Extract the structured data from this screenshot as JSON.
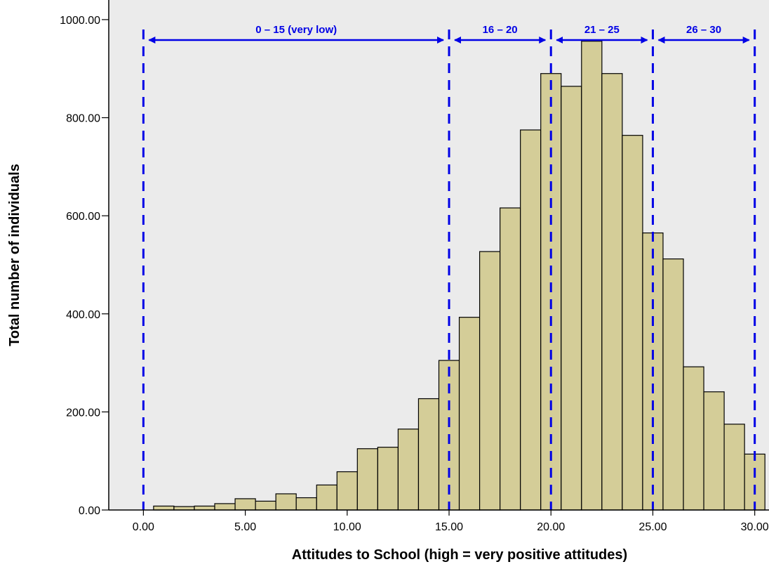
{
  "chart_data": {
    "type": "bar",
    "xlabel": "Attitudes to School (high = very positive attitudes)",
    "ylabel": "Total number of individuals",
    "x_range": [
      -1.7,
      30.7
    ],
    "ylim": [
      0,
      1040
    ],
    "x_ticks": [
      0,
      5,
      10,
      15,
      20,
      25,
      30
    ],
    "x_tick_labels": [
      "0.00",
      "5.00",
      "10.00",
      "15.00",
      "20.00",
      "25.00",
      "30.00"
    ],
    "y_ticks": [
      0,
      200,
      400,
      600,
      800,
      1000
    ],
    "y_tick_labels": [
      "0.00",
      "200.00",
      "400.00",
      "600.00",
      "800.00",
      "1000.00"
    ],
    "x": [
      1,
      2,
      3,
      4,
      5,
      6,
      7,
      8,
      9,
      10,
      11,
      12,
      13,
      14,
      15,
      16,
      17,
      18,
      19,
      20,
      21,
      22,
      23,
      24,
      25,
      26,
      27,
      28,
      29,
      30
    ],
    "values": [
      8,
      7,
      8,
      13,
      23,
      18,
      33,
      25,
      51,
      78,
      125,
      128,
      165,
      227,
      305,
      393,
      527,
      616,
      775,
      890,
      864,
      956,
      890,
      764,
      565,
      512,
      292,
      241,
      175,
      114
    ],
    "bar_color": "#d4cd98",
    "bar_edge_color": "#000000",
    "plot_background": "#ebebeb",
    "grid": false,
    "reference_lines": {
      "x": [
        0,
        15,
        20,
        25,
        30
      ],
      "color": "#0000e6",
      "style": "dashed"
    },
    "annotations": [
      {
        "text": "0 – 15 (very low)",
        "from": 0,
        "to": 15
      },
      {
        "text": "16 – 20",
        "from": 15,
        "to": 20
      },
      {
        "text": "21 – 25",
        "from": 20,
        "to": 25
      },
      {
        "text": "26 – 30",
        "from": 25,
        "to": 30
      }
    ]
  }
}
